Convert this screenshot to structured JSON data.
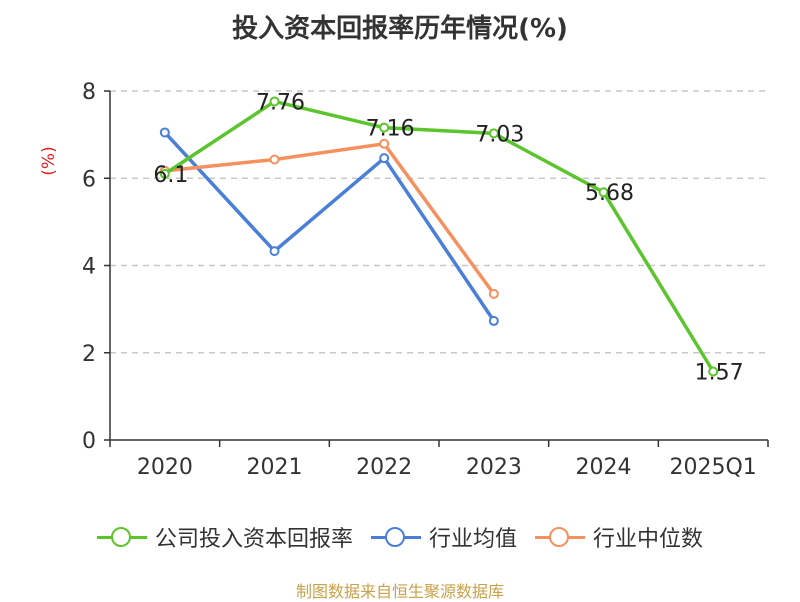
{
  "chart_data": {
    "type": "line",
    "title": "投入资本回报率历年情况(%)",
    "ylabel": "(%)",
    "categories": [
      "2020",
      "2021",
      "2022",
      "2023",
      "2024",
      "2025Q1"
    ],
    "ylim": [
      0,
      8
    ],
    "yticks": [
      "0",
      "2",
      "4",
      "6",
      "8"
    ],
    "grid": true,
    "legend_position": "bottom",
    "series": [
      {
        "name": "公司投入资本回报率",
        "color": "#5cc42c",
        "values": [
          6.1,
          7.76,
          7.16,
          7.03,
          5.68,
          1.57
        ],
        "labels": [
          "6.1",
          "7.76",
          "7.16",
          "7.03",
          "5.68",
          "1.57"
        ]
      },
      {
        "name": "行业均值",
        "color": "#4a7fd9",
        "values": [
          7.05,
          4.33,
          6.46,
          2.73,
          null,
          null
        ]
      },
      {
        "name": "行业中位数",
        "color": "#f4915e",
        "values": [
          6.17,
          6.43,
          6.79,
          3.35,
          null,
          null
        ]
      }
    ]
  },
  "source_note": "制图数据来自恒生聚源数据库"
}
